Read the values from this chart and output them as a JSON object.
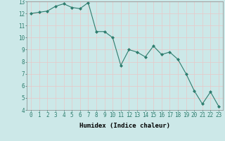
{
  "x": [
    0,
    1,
    2,
    3,
    4,
    5,
    6,
    7,
    8,
    9,
    10,
    11,
    12,
    13,
    14,
    15,
    16,
    17,
    18,
    19,
    20,
    21,
    22,
    23
  ],
  "y": [
    12.0,
    12.1,
    12.2,
    12.6,
    12.8,
    12.5,
    12.4,
    12.9,
    10.5,
    10.5,
    10.0,
    7.7,
    9.0,
    8.8,
    8.4,
    9.3,
    8.6,
    8.8,
    8.2,
    7.0,
    5.6,
    4.5,
    5.5,
    4.3
  ],
  "line_color": "#2e7d6e",
  "marker": "D",
  "marker_size": 2,
  "bg_color": "#cce8e8",
  "grid_color": "#e8c8c8",
  "xlabel": "Humidex (Indice chaleur)",
  "xlim": [
    -0.5,
    23.5
  ],
  "ylim": [
    4,
    13
  ],
  "yticks": [
    4,
    5,
    6,
    7,
    8,
    9,
    10,
    11,
    12,
    13
  ],
  "xticks": [
    0,
    1,
    2,
    3,
    4,
    5,
    6,
    7,
    8,
    9,
    10,
    11,
    12,
    13,
    14,
    15,
    16,
    17,
    18,
    19,
    20,
    21,
    22,
    23
  ],
  "xlabel_fontsize": 6.5,
  "tick_fontsize": 5.5
}
